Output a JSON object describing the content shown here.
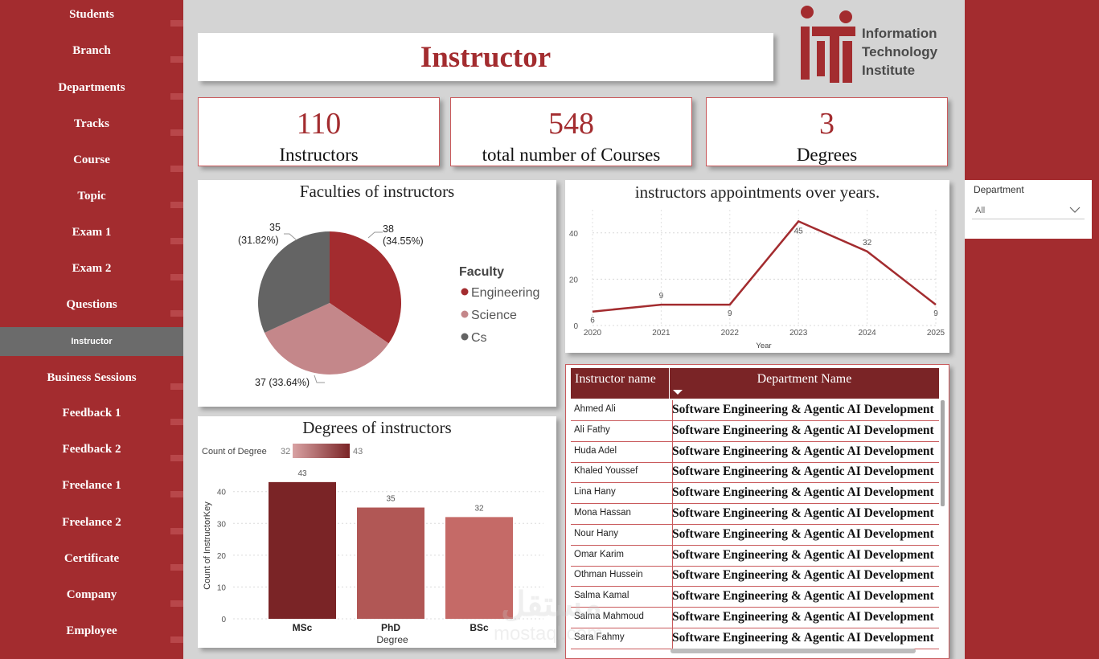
{
  "nav": {
    "items": [
      "Students",
      "Branch",
      "Departments",
      "Tracks",
      "Course",
      "Topic",
      "Exam 1",
      "Exam 2",
      "Questions",
      "Instructor",
      "Business Sessions",
      "Feedback 1",
      "Feedback 2",
      "Freelance 1",
      "Freelance 2",
      "Certificate",
      "Company",
      "Employee"
    ],
    "active": "Instructor"
  },
  "header": {
    "title": "Instructor"
  },
  "logo": {
    "line1": "Information",
    "line2": "Technology",
    "line3": "Institute"
  },
  "kpis": [
    {
      "value": "110",
      "label": "Instructors"
    },
    {
      "value": "548",
      "label": "total number of Courses"
    },
    {
      "value": "3",
      "label": "Degrees"
    }
  ],
  "slicer": {
    "title": "Department",
    "value": "All"
  },
  "colors": {
    "accent": "#a32c2f",
    "dark_red": "#7a2426",
    "engineering": "#a32c2f",
    "science": "#c4878a",
    "cs": "#646464"
  },
  "chart_data": [
    {
      "type": "pie",
      "title": "Faculties of instructors",
      "legend_title": "Faculty",
      "legend_position": "right",
      "slices": [
        {
          "name": "Engineering",
          "value": 38,
          "label": "38",
          "pct_label": "(34.55%)"
        },
        {
          "name": "Science",
          "value": 37,
          "label": "37 (33.64%)",
          "pct_label": ""
        },
        {
          "name": "Cs",
          "value": 35,
          "label": "35",
          "pct_label": "(31.82%)"
        }
      ]
    },
    {
      "type": "line",
      "title": "instructors appointments over years.",
      "xlabel": "Year",
      "ylabel": "",
      "x": [
        "2020",
        "2021",
        "2022",
        "2023",
        "2024",
        "2025"
      ],
      "values": [
        6,
        9,
        9,
        45,
        32,
        9
      ],
      "yticks": [
        "0",
        "20",
        "40"
      ],
      "ylim": [
        0,
        50
      ],
      "grid": true
    },
    {
      "type": "bar",
      "title": "Degrees of instructors",
      "xlabel": "Degree",
      "ylabel": "Count of InstructorKey",
      "categories": [
        "MSc",
        "PhD",
        "BSc"
      ],
      "values": [
        43,
        35,
        32
      ],
      "yticks": [
        "0",
        "10",
        "20",
        "30",
        "40"
      ],
      "ylim": [
        0,
        46
      ],
      "legend": {
        "label": "Count of Degree",
        "min": "32",
        "max": "43"
      },
      "grid": true
    }
  ],
  "table": {
    "columns": [
      "Instructor name",
      "Department Name"
    ],
    "rows": [
      [
        "Ahmed Ali",
        "Software Engineering & Agentic AI Development"
      ],
      [
        "Ali Fathy",
        "Software Engineering & Agentic AI Development"
      ],
      [
        "Huda Adel",
        "Software Engineering & Agentic AI Development"
      ],
      [
        "Khaled Youssef",
        "Software Engineering & Agentic AI Development"
      ],
      [
        "Lina Hany",
        "Software Engineering & Agentic AI Development"
      ],
      [
        "Mona Hassan",
        "Software Engineering & Agentic AI Development"
      ],
      [
        "Nour Hany",
        "Software Engineering & Agentic AI Development"
      ],
      [
        "Omar Karim",
        "Software Engineering & Agentic AI Development"
      ],
      [
        "Othman Hussein",
        "Software Engineering & Agentic AI Development"
      ],
      [
        "Salma Kamal",
        "Software Engineering & Agentic AI Development"
      ],
      [
        "Salma Mahmoud",
        "Software Engineering & Agentic AI Development"
      ],
      [
        "Sara Fahmy",
        "Software Engineering & Agentic AI Development"
      ]
    ]
  },
  "watermark": {
    "line1": "مستقل",
    "line2": "mostaql.com"
  }
}
